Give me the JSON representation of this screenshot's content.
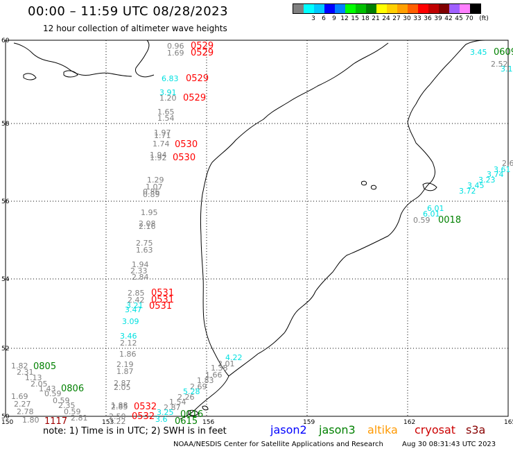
{
  "header": {
    "title": "00:00 – 11:59 UTC 08/28/2023",
    "subtitle": "12 hour collection of altimeter wave heights"
  },
  "legend": {
    "colors": [
      "#808080",
      "#00ffff",
      "#00c8ff",
      "#0000ff",
      "#0080ff",
      "#00ff00",
      "#00c000",
      "#008000",
      "#ffff00",
      "#ffd000",
      "#ffa000",
      "#ff6000",
      "#ff0000",
      "#c00000",
      "#800000",
      "#a060ff",
      "#ff80ff",
      "#000000"
    ],
    "labels": [
      "3",
      "6",
      "9",
      "12",
      "15",
      "18",
      "21",
      "24",
      "27",
      "30",
      "33",
      "36",
      "39",
      "42",
      "45",
      "70"
    ],
    "unit": "(ft)"
  },
  "axes": {
    "lat_labels": [
      "60",
      "58",
      "56",
      "54",
      "52",
      "50"
    ],
    "lon_labels": [
      "150",
      "153",
      "156",
      "159",
      "162",
      "165"
    ]
  },
  "observations": [
    {
      "t": "0.96",
      "c": "#808080"
    },
    {
      "t": "0529",
      "c": "#ff0000"
    },
    {
      "t": "1.69",
      "c": "#808080"
    },
    {
      "t": "0529",
      "c": "#ff0000"
    },
    {
      "t": "6.83",
      "c": "#00e0e0"
    },
    {
      "t": "0529",
      "c": "#ff0000"
    },
    {
      "t": "3.91",
      "c": "#00e0e0"
    },
    {
      "t": "1.20",
      "c": "#808080"
    },
    {
      "t": "0529",
      "c": "#ff0000"
    },
    {
      "t": "1.65",
      "c": "#808080"
    },
    {
      "t": "1.54",
      "c": "#808080"
    },
    {
      "t": "1.97",
      "c": "#808080"
    },
    {
      "t": "1.71",
      "c": "#808080"
    },
    {
      "t": "1.74",
      "c": "#808080"
    },
    {
      "t": "0530",
      "c": "#ff0000"
    },
    {
      "t": "1.94",
      "c": "#808080"
    },
    {
      "t": "1.92",
      "c": "#808080"
    },
    {
      "t": "0530",
      "c": "#ff0000"
    },
    {
      "t": "1.29",
      "c": "#808080"
    },
    {
      "t": "1.07",
      "c": "#808080"
    },
    {
      "t": "0.86",
      "c": "#808080"
    },
    {
      "t": "0.89",
      "c": "#808080"
    },
    {
      "t": "1.95",
      "c": "#808080"
    },
    {
      "t": "2.08",
      "c": "#808080"
    },
    {
      "t": "2.16",
      "c": "#808080"
    },
    {
      "t": "2.75",
      "c": "#808080"
    },
    {
      "t": "1.63",
      "c": "#808080"
    },
    {
      "t": "1.94",
      "c": "#808080"
    },
    {
      "t": "2.33",
      "c": "#808080"
    },
    {
      "t": "2.84",
      "c": "#808080"
    },
    {
      "t": "2.85",
      "c": "#808080"
    },
    {
      "t": "0531",
      "c": "#ff0000"
    },
    {
      "t": "2.42",
      "c": "#808080"
    },
    {
      "t": "0531",
      "c": "#ff0000"
    },
    {
      "t": "3.21",
      "c": "#00e0e0"
    },
    {
      "t": "3.47",
      "c": "#00e0e0"
    },
    {
      "t": "0531",
      "c": "#ff0000"
    },
    {
      "t": "3.09",
      "c": "#00e0e0"
    },
    {
      "t": "3.46",
      "c": "#00e0e0"
    },
    {
      "t": "2.12",
      "c": "#808080"
    },
    {
      "t": "1.86",
      "c": "#808080"
    },
    {
      "t": "2.19",
      "c": "#808080"
    },
    {
      "t": "1.87",
      "c": "#808080"
    },
    {
      "t": "2.87",
      "c": "#808080"
    },
    {
      "t": "2.05",
      "c": "#808080"
    },
    {
      "t": "1.88",
      "c": "#808080"
    },
    {
      "t": "2.85",
      "c": "#808080"
    },
    {
      "t": "0532",
      "c": "#ff0000"
    },
    {
      "t": "2.50",
      "c": "#808080"
    },
    {
      "t": "0532",
      "c": "#ff0000"
    },
    {
      "t": "1.22",
      "c": "#808080"
    },
    {
      "t": "1.82",
      "c": "#808080"
    },
    {
      "t": "0805",
      "c": "#008000"
    },
    {
      "t": "2.31",
      "c": "#808080"
    },
    {
      "t": "1.13",
      "c": "#808080"
    },
    {
      "t": "2.05",
      "c": "#808080"
    },
    {
      "t": "1.43",
      "c": "#808080"
    },
    {
      "t": "0806",
      "c": "#008000"
    },
    {
      "t": "0.59",
      "c": "#808080"
    },
    {
      "t": "0.59",
      "c": "#808080"
    },
    {
      "t": "1.69",
      "c": "#808080"
    },
    {
      "t": "2.27",
      "c": "#808080"
    },
    {
      "t": "2.35",
      "c": "#808080"
    },
    {
      "t": "2.78",
      "c": "#808080"
    },
    {
      "t": "0.59",
      "c": "#808080"
    },
    {
      "t": "1.80",
      "c": "#808080"
    },
    {
      "t": "1117",
      "c": "#a00000"
    },
    {
      "t": "2.81",
      "c": "#808080"
    },
    {
      "t": "4.22",
      "c": "#00e0e0"
    },
    {
      "t": "2.01",
      "c": "#808080"
    },
    {
      "t": "1.38",
      "c": "#808080"
    },
    {
      "t": "1.66",
      "c": "#808080"
    },
    {
      "t": "1.83",
      "c": "#808080"
    },
    {
      "t": "2.69",
      "c": "#808080"
    },
    {
      "t": "5.28",
      "c": "#00e0e0"
    },
    {
      "t": "2.26",
      "c": "#808080"
    },
    {
      "t": "1.54",
      "c": "#808080"
    },
    {
      "t": "2.87",
      "c": "#808080"
    },
    {
      "t": "3.25",
      "c": "#00e0e0"
    },
    {
      "t": "0016",
      "c": "#008000"
    },
    {
      "t": "3.6",
      "c": "#00e0e0"
    },
    {
      "t": "0615",
      "c": "#008000"
    },
    {
      "t": "3.45",
      "c": "#00e0e0"
    },
    {
      "t": "0609",
      "c": "#008000"
    },
    {
      "t": "2.52",
      "c": "#808080"
    },
    {
      "t": "3.1",
      "c": "#00e0e0"
    },
    {
      "t": "2.6",
      "c": "#808080"
    },
    {
      "t": "3.61",
      "c": "#00e0e0"
    },
    {
      "t": "3.74",
      "c": "#00e0e0"
    },
    {
      "t": "3.23",
      "c": "#00e0e0"
    },
    {
      "t": "3.45",
      "c": "#00e0e0"
    },
    {
      "t": "3.72",
      "c": "#00e0e0"
    },
    {
      "t": "6.01",
      "c": "#00e0e0"
    },
    {
      "t": "6.01",
      "c": "#00e0e0"
    },
    {
      "t": "0.59",
      "c": "#808080"
    },
    {
      "t": "0018",
      "c": "#008000"
    }
  ],
  "footer": {
    "note": "note:  1) Time is in UTC;  2) SWH is in feet",
    "satellites": [
      {
        "name": "jason2",
        "color": "#0000ff"
      },
      {
        "name": "jason3",
        "color": "#008000"
      },
      {
        "name": "altika",
        "color": "#ff9900"
      },
      {
        "name": "cryosat",
        "color": "#cc0000"
      },
      {
        "name": "s3a",
        "color": "#880000"
      }
    ],
    "credit": "NOAA/NESDIS Center for Satellite Applications and Research",
    "stamp": "Aug 30 08:31:43 UTC 2023"
  }
}
